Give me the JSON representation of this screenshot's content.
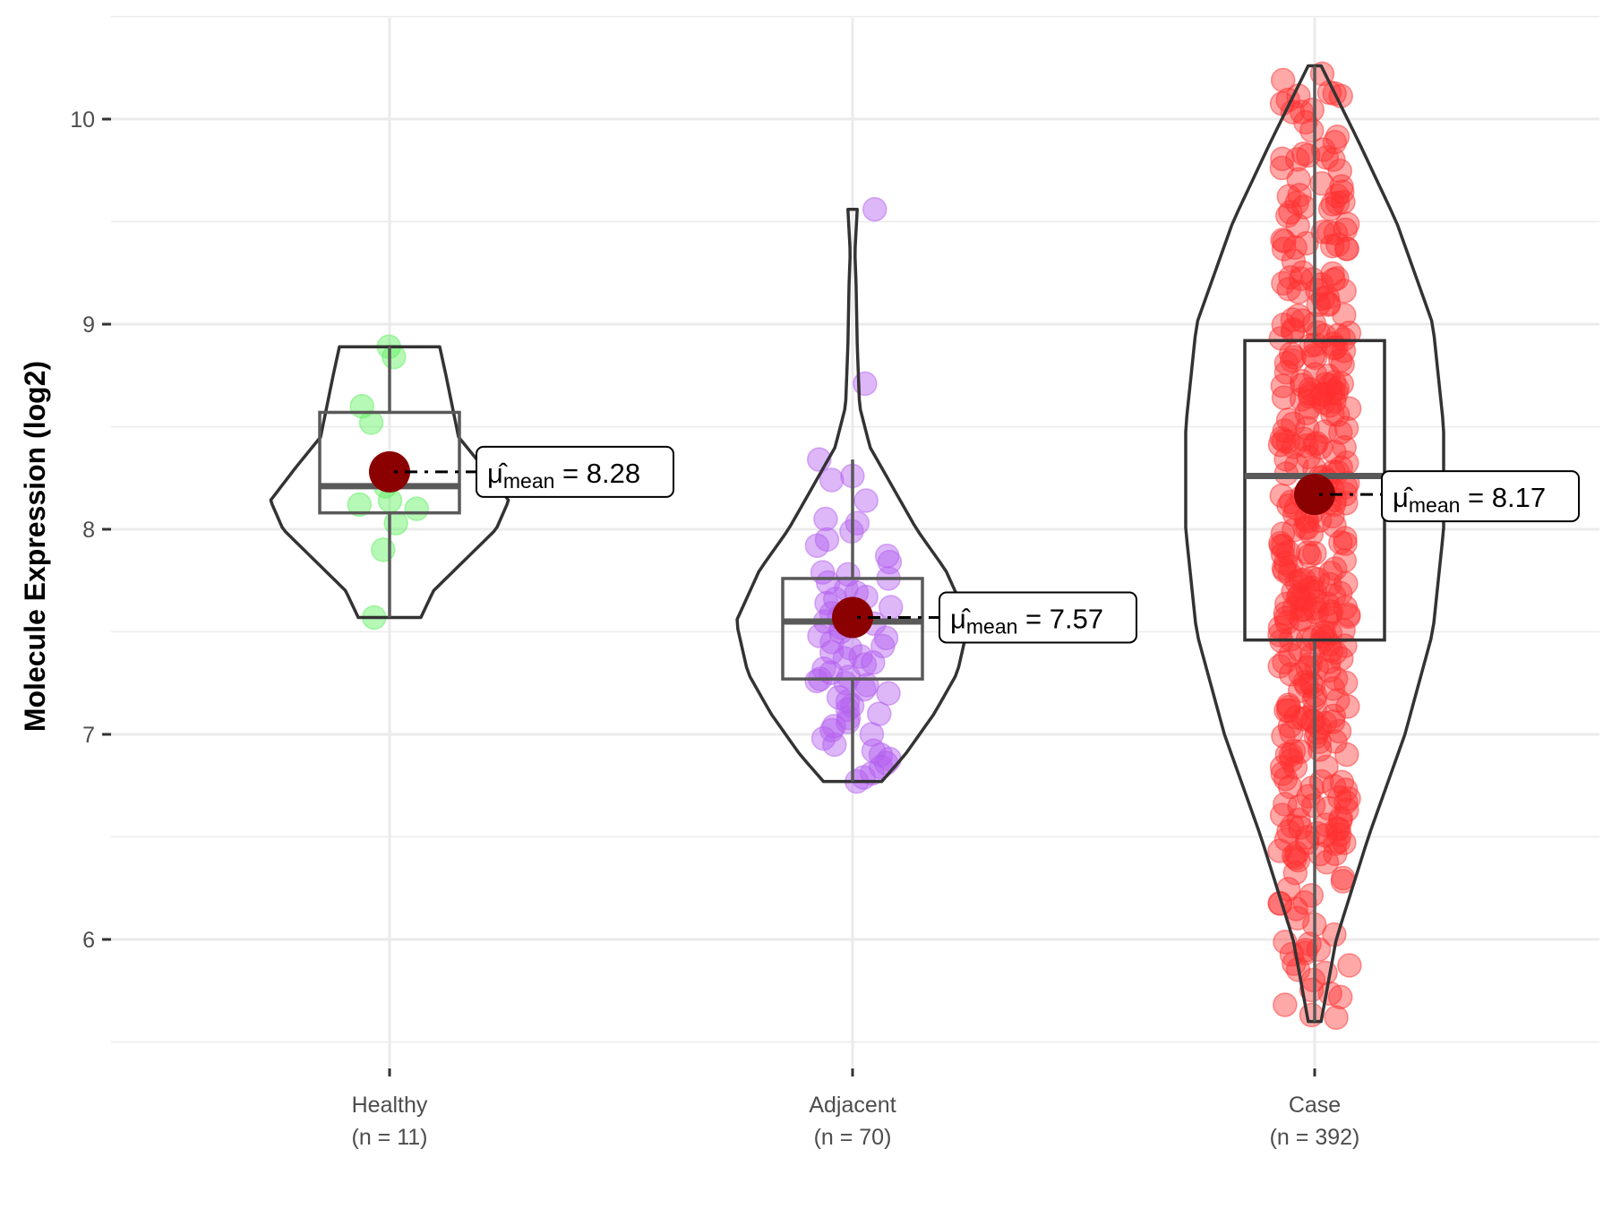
{
  "chart_data": {
    "type": "violin",
    "title": "",
    "xlabel": "",
    "ylabel": "Molecule Expression (log2)",
    "ylim": [
      5.5,
      10.5
    ],
    "yticks": [
      6,
      7,
      8,
      9,
      10
    ],
    "grid": true,
    "categories": [
      {
        "name": "Healthy",
        "n_label": "(n = 11)",
        "color": "#5ef05e",
        "mean": 8.28,
        "mean_label": "8.28",
        "box": {
          "q1": 8.08,
          "median": 8.21,
          "q3": 8.57,
          "whisker_low": 7.57,
          "whisker_high": 8.89
        },
        "violin": {
          "min": 7.57,
          "max": 8.89,
          "profile": [
            [
              7.57,
              0.25
            ],
            [
              7.7,
              0.35
            ],
            [
              7.85,
              0.6
            ],
            [
              8.0,
              0.85
            ],
            [
              8.14,
              0.95
            ],
            [
              8.3,
              0.75
            ],
            [
              8.45,
              0.55
            ],
            [
              8.6,
              0.5
            ],
            [
              8.75,
              0.45
            ],
            [
              8.89,
              0.4
            ]
          ]
        },
        "points": [
          8.89,
          8.84,
          8.6,
          8.52,
          8.21,
          8.14,
          8.12,
          8.1,
          8.03,
          7.9,
          7.57
        ]
      },
      {
        "name": "Adjacent",
        "n_label": "(n = 70)",
        "color": "#b45ff0",
        "mean": 7.57,
        "mean_label": "7.57",
        "box": {
          "q1": 7.27,
          "median": 7.55,
          "q3": 7.76,
          "whisker_low": 6.77,
          "whisker_high": 8.34
        },
        "violin": {
          "min": 6.77,
          "max": 9.56,
          "profile": [
            [
              6.77,
              0.25
            ],
            [
              6.9,
              0.45
            ],
            [
              7.1,
              0.7
            ],
            [
              7.3,
              0.9
            ],
            [
              7.55,
              1.0
            ],
            [
              7.8,
              0.8
            ],
            [
              8.0,
              0.55
            ],
            [
              8.2,
              0.35
            ],
            [
              8.4,
              0.15
            ],
            [
              8.6,
              0.06
            ],
            [
              8.9,
              0.04
            ],
            [
              9.2,
              0.03
            ],
            [
              9.35,
              0.02
            ],
            [
              9.56,
              0.04
            ]
          ]
        },
        "points": [
          9.56,
          8.71,
          8.34,
          8.26,
          8.24,
          8.14,
          8.05,
          8.03,
          7.99,
          7.95,
          7.92,
          7.87,
          7.84,
          7.79,
          7.78,
          7.76,
          7.74,
          7.71,
          7.69,
          7.67,
          7.66,
          7.64,
          7.62,
          7.6,
          7.59,
          7.58,
          7.57,
          7.55,
          7.54,
          7.52,
          7.5,
          7.48,
          7.47,
          7.45,
          7.43,
          7.42,
          7.4,
          7.38,
          7.37,
          7.35,
          7.34,
          7.32,
          7.3,
          7.28,
          7.27,
          7.26,
          7.25,
          7.24,
          7.22,
          7.2,
          7.18,
          7.16,
          7.14,
          7.12,
          7.1,
          7.08,
          7.06,
          7.04,
          7.02,
          7.0,
          6.98,
          6.95,
          6.92,
          6.9,
          6.88,
          6.86,
          6.84,
          6.81,
          6.79,
          6.77
        ]
      },
      {
        "name": "Case",
        "n_label": "(n = 392)",
        "color": "#ff3030",
        "mean": 8.17,
        "mean_label": "8.17",
        "box": {
          "q1": 7.46,
          "median": 8.26,
          "q3": 8.92,
          "whisker_low": 5.6,
          "whisker_high": 10.26
        },
        "violin": {
          "min": 5.6,
          "max": 10.26,
          "profile": [
            [
              5.6,
              0.03
            ],
            [
              6.0,
              0.1
            ],
            [
              6.5,
              0.25
            ],
            [
              7.0,
              0.42
            ],
            [
              7.5,
              0.55
            ],
            [
              8.0,
              0.6
            ],
            [
              8.5,
              0.6
            ],
            [
              9.0,
              0.55
            ],
            [
              9.5,
              0.38
            ],
            [
              9.9,
              0.2
            ],
            [
              10.26,
              0.03
            ]
          ]
        },
        "n_points": 392
      }
    ]
  }
}
